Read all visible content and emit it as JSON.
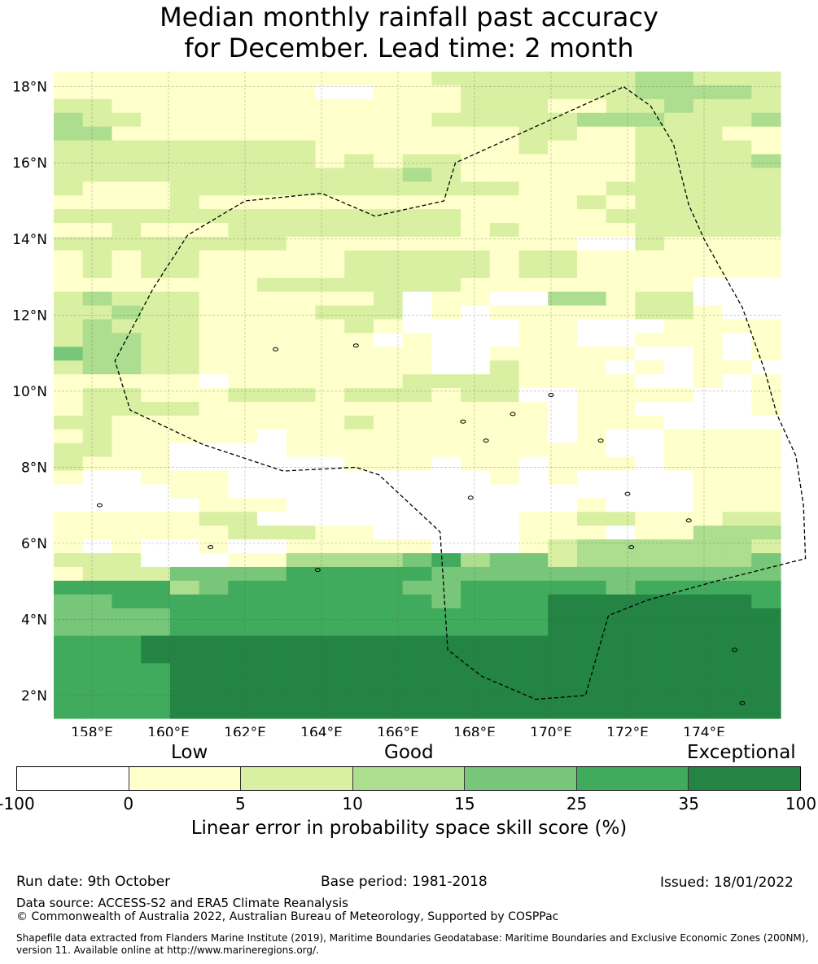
{
  "title": {
    "line1": "Median monthly rainfall past accuracy",
    "line2": "for December. Lead time: 2 month"
  },
  "map": {
    "lat_labels": [
      "18°N",
      "16°N",
      "14°N",
      "12°N",
      "10°N",
      "8°N",
      "6°N",
      "4°N",
      "2°N"
    ],
    "lon_labels": [
      "158°E",
      "160°E",
      "162°E",
      "164°E",
      "166°E",
      "168°E",
      "170°E",
      "172°E",
      "174°E"
    ],
    "lat_range": [
      1.4,
      18.4
    ],
    "lon_range": [
      157.0,
      176.0
    ],
    "grid_rows": [
      "1111111111111222222233222",
      "1111111110011122222233332",
      "2211111111111122211223222",
      "3221111111111222223332223",
      "3311111111111111221122211",
      "2222222221111111211122221",
      "2222222221212211111122223",
      "2222222222223211111122222",
      "2111222222222222111222222",
      "1111211111111111112122222",
      "2222222222222211111222222",
      "1121112222222212111122222",
      "2222222211111111110021111",
      "1212211111222221221111111",
      "1212211111222221221111111",
      "1111111222222211111111000",
      "2322211111120110033122000",
      "2232211112220101111122100",
      "2322211111210000110001111",
      "2332211111101000110011101",
      "4332211111111001111100101",
      "2332211111111002111010110",
      "1111101111112222111100101",
      "1221112221222122001111001",
      "1222211111111111101100001",
      "2211111111211111101110000",
      "1211111011111111101001111",
      "2211000011111111111001111",
      "2111000000111011011101111",
      "1001110000000001010000111",
      "0000110000000000000000111",
      "0000011100000000001000111",
      "1111122000000000112211122",
      "1111112221100000111011333",
      "1010010011111000123333332",
      "2220001133334534423333334",
      "1222444455555444444444444",
      "5555345555554455555455555",
      "4455555555555455566666665",
      "4444555555555555566666666",
      "4444555555555555566666666",
      "5556666666666666666666666",
      "5556666666666666666666666",
      "5555666666666666666666666",
      "5555666666666666666666666",
      "5555666666666666666666666",
      "5555666666666666666666666"
    ],
    "eez_boundary": [
      [
        171.9,
        18.0
      ],
      [
        172.6,
        17.5
      ],
      [
        173.2,
        16.5
      ],
      [
        173.6,
        14.9
      ],
      [
        174.0,
        14.0
      ],
      [
        175.0,
        12.2
      ],
      [
        175.6,
        10.5
      ],
      [
        175.9,
        9.4
      ],
      [
        176.4,
        8.3
      ],
      [
        176.6,
        7.0
      ],
      [
        176.65,
        5.6
      ],
      [
        174.3,
        5.0
      ],
      [
        172.5,
        4.5
      ],
      [
        171.5,
        4.1
      ],
      [
        170.9,
        2.0
      ],
      [
        169.6,
        1.9
      ],
      [
        168.2,
        2.5
      ],
      [
        167.3,
        3.2
      ],
      [
        167.1,
        6.3
      ],
      [
        165.5,
        7.8
      ],
      [
        164.9,
        8.0
      ],
      [
        163.0,
        7.9
      ],
      [
        160.9,
        8.6
      ],
      [
        159.0,
        9.5
      ],
      [
        158.6,
        10.8
      ],
      [
        159.6,
        12.7
      ],
      [
        160.5,
        14.1
      ],
      [
        162.0,
        15.0
      ],
      [
        164.0,
        15.2
      ],
      [
        165.4,
        14.6
      ],
      [
        167.2,
        15.0
      ],
      [
        167.5,
        16.0
      ],
      [
        171.9,
        18.0
      ]
    ],
    "atolls": [
      [
        158.2,
        7.0
      ],
      [
        161.1,
        5.9
      ],
      [
        163.9,
        5.3
      ],
      [
        167.9,
        7.2
      ],
      [
        168.3,
        8.7
      ],
      [
        169.0,
        9.4
      ],
      [
        170.0,
        9.9
      ],
      [
        171.3,
        8.7
      ],
      [
        172.0,
        7.3
      ],
      [
        172.1,
        5.9
      ],
      [
        174.8,
        3.2
      ],
      [
        175.0,
        1.8
      ],
      [
        173.6,
        6.6
      ],
      [
        167.7,
        9.2
      ],
      [
        164.9,
        11.2
      ],
      [
        162.8,
        11.1
      ]
    ]
  },
  "colorbar": {
    "category_labels": [
      "Low",
      "Good",
      "Exceptional"
    ],
    "colors": [
      "#ffffff",
      "#ffffcc",
      "#d9f0a3",
      "#addd8e",
      "#78c679",
      "#41ab5d",
      "#238443"
    ],
    "ticks": [
      "-100",
      "0",
      "5",
      "10",
      "15",
      "25",
      "35",
      "100"
    ],
    "title": "Linear error in probability space skill score (%)"
  },
  "footer": {
    "run_date": "Run date: 9th October",
    "base_period": "Base period: 1981-2018",
    "issued": "Issued: 18/01/2022",
    "data_source": "Data source: ACCESS-S2 and ERA5 Climate Reanalysis",
    "copyright": "© Commonwealth of Australia 2022, Australian Bureau of Meteorology, Supported by COSPPac",
    "shapefile_note": "Shapefile data extracted from Flanders Marine Institute (2019), Maritime Boundaries Geodatabase: Maritime Boundaries and Exclusive Economic Zones (200NM), version 11. Available online at http://www.marineregions.org/."
  }
}
